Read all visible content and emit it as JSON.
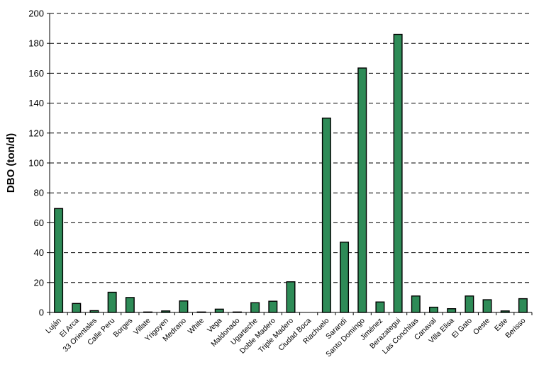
{
  "chart_data": {
    "type": "bar",
    "title": "",
    "xlabel": "",
    "ylabel": "DBO (ton/d)",
    "ylim": [
      0,
      200
    ],
    "yticks": [
      0,
      20,
      40,
      60,
      80,
      100,
      120,
      140,
      160,
      180,
      200
    ],
    "grid": "horizontal-dashed",
    "bar_color": "#2e8b57",
    "categories": [
      "Luján",
      "El Arca",
      "33 Orientales",
      "Calle Peru",
      "Borges",
      "Villate",
      "Yrigoyen",
      "Medrano",
      "White",
      "Vega",
      "Maldonado",
      "Ugarteche",
      "Doble Madero",
      "Triple Madero",
      "Ciudad Boca",
      "Riachuelo",
      "Sarandí",
      "Santo Domingo",
      "Jiménez",
      "Berazategui",
      "Las Conchitas",
      "Canaval",
      "Villa Elisa",
      "El Gato",
      "Oeste",
      "Este",
      "Berisso"
    ],
    "values": [
      69.5,
      6,
      1.2,
      13.5,
      10,
      0.3,
      1,
      7.7,
      0.3,
      2.2,
      0.3,
      6.5,
      7.5,
      20.5,
      0,
      130,
      47,
      163.5,
      7,
      186,
      11,
      3.5,
      2.5,
      11,
      8.5,
      1,
      9.2
    ]
  }
}
